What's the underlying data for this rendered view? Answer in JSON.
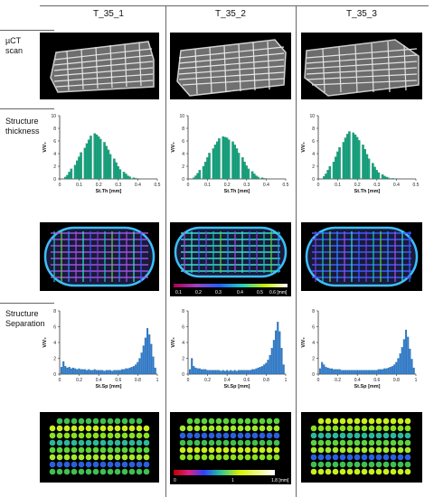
{
  "columns": [
    "T_35_1",
    "T_35_2",
    "T_35_3"
  ],
  "rows": {
    "uct": [
      "µCT",
      "scan"
    ],
    "thickness": [
      "Structure",
      "thickness"
    ],
    "separation": [
      "Structure",
      "Separation"
    ]
  },
  "colorbars": {
    "thickness_ticks": [
      "0.1",
      "0.2",
      "0.3",
      "0.4",
      "0.5",
      "0.6 [mm]"
    ],
    "separation_ticks": [
      "0",
      "1",
      "1.8 [mm]"
    ]
  },
  "chart_data": [
    {
      "type": "bar",
      "group": "thickness",
      "column": "T_35_1",
      "xlabel": "St.Th [mm]",
      "ylabel": "V/V₀",
      "xlim": [
        0,
        0.5
      ],
      "ylim": [
        0,
        10
      ],
      "xticks": [
        "0",
        "0.1",
        "0.2",
        "0.3",
        "0.4",
        "0.5"
      ],
      "yticks": [
        "0",
        "2",
        "4",
        "6",
        "8",
        "10"
      ],
      "bin_width": 0.0125,
      "x": [
        0.03,
        0.04,
        0.05,
        0.06,
        0.08,
        0.09,
        0.1,
        0.11,
        0.13,
        0.14,
        0.15,
        0.16,
        0.18,
        0.19,
        0.2,
        0.21,
        0.23,
        0.24,
        0.25,
        0.26,
        0.28,
        0.29,
        0.3,
        0.31,
        0.33,
        0.34,
        0.35,
        0.36,
        0.38,
        0.39,
        0.4
      ],
      "values": [
        0.3,
        0.6,
        1.1,
        1.6,
        2.2,
        2.9,
        3.5,
        4.2,
        4.9,
        5.6,
        6.2,
        6.8,
        7.2,
        7.0,
        6.7,
        6.3,
        5.8,
        5.2,
        4.6,
        3.9,
        3.2,
        2.6,
        2.0,
        1.5,
        1.1,
        0.8,
        0.5,
        0.35,
        0.2,
        0.1,
        0.05
      ]
    },
    {
      "type": "bar",
      "group": "thickness",
      "column": "T_35_2",
      "xlabel": "St.Th [mm]",
      "ylabel": "V/V₀",
      "xlim": [
        0,
        0.5
      ],
      "ylim": [
        0,
        10
      ],
      "xticks": [
        "0",
        "0.1",
        "0.2",
        "0.3",
        "0.4",
        "0.5"
      ],
      "yticks": [
        "0",
        "2",
        "4",
        "6",
        "8",
        "10"
      ],
      "bin_width": 0.0125,
      "x": [
        0.03,
        0.04,
        0.05,
        0.06,
        0.08,
        0.09,
        0.1,
        0.11,
        0.13,
        0.14,
        0.15,
        0.16,
        0.18,
        0.19,
        0.2,
        0.21,
        0.23,
        0.24,
        0.25,
        0.26,
        0.28,
        0.29,
        0.3,
        0.31,
        0.33,
        0.34,
        0.35,
        0.36,
        0.38,
        0.39,
        0.4
      ],
      "values": [
        0.2,
        0.5,
        0.9,
        1.4,
        2.0,
        2.7,
        3.4,
        4.1,
        4.8,
        5.4,
        5.9,
        6.4,
        6.7,
        6.6,
        6.5,
        6.2,
        5.9,
        5.4,
        4.8,
        4.1,
        3.4,
        2.7,
        2.1,
        1.6,
        1.2,
        0.8,
        0.5,
        0.3,
        0.2,
        0.1,
        0.05
      ]
    },
    {
      "type": "bar",
      "group": "thickness",
      "column": "T_35_3",
      "xlabel": "St.Th [mm]",
      "ylabel": "V/V₀",
      "xlim": [
        0,
        0.5
      ],
      "ylim": [
        0,
        10
      ],
      "xticks": [
        "0",
        "0.1",
        "0.2",
        "0.3",
        "0.4",
        "0.5"
      ],
      "yticks": [
        "0",
        "2",
        "4",
        "6",
        "8",
        "10"
      ],
      "bin_width": 0.0125,
      "x": [
        0.03,
        0.04,
        0.05,
        0.06,
        0.08,
        0.09,
        0.1,
        0.11,
        0.13,
        0.14,
        0.15,
        0.16,
        0.18,
        0.19,
        0.2,
        0.21,
        0.23,
        0.24,
        0.25,
        0.26,
        0.28,
        0.29,
        0.3,
        0.31,
        0.33,
        0.34,
        0.35,
        0.36,
        0.38,
        0.39,
        0.4
      ],
      "values": [
        0.4,
        0.8,
        1.4,
        2.0,
        2.7,
        3.5,
        4.3,
        5.0,
        5.8,
        6.5,
        7.1,
        7.5,
        7.3,
        7.0,
        6.6,
        6.1,
        5.4,
        4.7,
        3.9,
        3.2,
        2.5,
        1.9,
        1.4,
        1.0,
        0.7,
        0.45,
        0.3,
        0.2,
        0.1,
        0.05,
        0.03
      ]
    },
    {
      "type": "bar",
      "group": "separation",
      "column": "T_35_1",
      "xlabel": "St.Sp [mm]",
      "ylabel": "V/V₀",
      "xlim": [
        0,
        1
      ],
      "ylim": [
        0,
        8
      ],
      "xticks": [
        "0",
        "0.2",
        "0.4",
        "0.6",
        "0.8",
        "1"
      ],
      "yticks": [
        "0",
        "2",
        "4",
        "6",
        "8"
      ],
      "bin_width": 0.02,
      "x": [
        0.02,
        0.04,
        0.06,
        0.08,
        0.1,
        0.12,
        0.14,
        0.16,
        0.18,
        0.2,
        0.22,
        0.24,
        0.26,
        0.28,
        0.3,
        0.32,
        0.34,
        0.36,
        0.38,
        0.4,
        0.42,
        0.44,
        0.46,
        0.48,
        0.5,
        0.52,
        0.54,
        0.56,
        0.58,
        0.6,
        0.62,
        0.64,
        0.66,
        0.68,
        0.7,
        0.72,
        0.74,
        0.76,
        0.78,
        0.8,
        0.82,
        0.84,
        0.86,
        0.88,
        0.9,
        0.92,
        0.94,
        0.96,
        0.98
      ],
      "values": [
        0.9,
        1.6,
        1.0,
        0.8,
        0.9,
        0.7,
        0.8,
        0.7,
        0.6,
        0.7,
        0.6,
        0.6,
        0.6,
        0.5,
        0.6,
        0.5,
        0.5,
        0.6,
        0.5,
        0.5,
        0.5,
        0.5,
        0.4,
        0.5,
        0.5,
        0.5,
        0.4,
        0.5,
        0.5,
        0.5,
        0.5,
        0.6,
        0.6,
        0.7,
        0.7,
        0.8,
        0.9,
        1.0,
        1.2,
        1.5,
        2.0,
        2.7,
        3.6,
        4.6,
        5.8,
        5.0,
        3.8,
        2.2,
        0.8
      ]
    },
    {
      "type": "bar",
      "group": "separation",
      "column": "T_35_2",
      "xlabel": "St.Sp [mm]",
      "ylabel": "V/V₀",
      "xlim": [
        0,
        1
      ],
      "ylim": [
        0,
        8
      ],
      "xticks": [
        "0",
        "0.2",
        "0.4",
        "0.6",
        "0.8",
        "1"
      ],
      "yticks": [
        "0",
        "2",
        "4",
        "6",
        "8"
      ],
      "bin_width": 0.02,
      "x": [
        0.02,
        0.04,
        0.06,
        0.08,
        0.1,
        0.12,
        0.14,
        0.16,
        0.18,
        0.2,
        0.22,
        0.24,
        0.26,
        0.28,
        0.3,
        0.32,
        0.34,
        0.36,
        0.38,
        0.4,
        0.42,
        0.44,
        0.46,
        0.48,
        0.5,
        0.52,
        0.54,
        0.56,
        0.58,
        0.6,
        0.62,
        0.64,
        0.66,
        0.68,
        0.7,
        0.72,
        0.74,
        0.76,
        0.78,
        0.8,
        0.82,
        0.84,
        0.86,
        0.88,
        0.9,
        0.92,
        0.94,
        0.96,
        0.98
      ],
      "values": [
        0.6,
        2.0,
        1.0,
        0.8,
        0.7,
        0.7,
        0.6,
        0.6,
        0.6,
        0.5,
        0.5,
        0.5,
        0.5,
        0.5,
        0.5,
        0.5,
        0.4,
        0.5,
        0.4,
        0.5,
        0.4,
        0.5,
        0.4,
        0.5,
        0.4,
        0.5,
        0.5,
        0.5,
        0.5,
        0.5,
        0.5,
        0.5,
        0.6,
        0.6,
        0.7,
        0.8,
        0.9,
        1.0,
        1.2,
        1.4,
        1.8,
        2.4,
        3.3,
        4.3,
        5.5,
        6.6,
        5.4,
        3.3,
        1.2
      ]
    },
    {
      "type": "bar",
      "group": "separation",
      "column": "T_35_3",
      "xlabel": "St.Sp [mm]",
      "ylabel": "V/V₀",
      "xlim": [
        0,
        1
      ],
      "ylim": [
        0,
        8
      ],
      "xticks": [
        "0",
        "0.2",
        "0.4",
        "0.6",
        "0.8",
        "1"
      ],
      "yticks": [
        "0",
        "2",
        "4",
        "6",
        "8"
      ],
      "bin_width": 0.02,
      "x": [
        0.02,
        0.04,
        0.06,
        0.08,
        0.1,
        0.12,
        0.14,
        0.16,
        0.18,
        0.2,
        0.22,
        0.24,
        0.26,
        0.28,
        0.3,
        0.32,
        0.34,
        0.36,
        0.38,
        0.4,
        0.42,
        0.44,
        0.46,
        0.48,
        0.5,
        0.52,
        0.54,
        0.56,
        0.58,
        0.6,
        0.62,
        0.64,
        0.66,
        0.68,
        0.7,
        0.72,
        0.74,
        0.76,
        0.78,
        0.8,
        0.82,
        0.84,
        0.86,
        0.88,
        0.9,
        0.92,
        0.94,
        0.96,
        0.98
      ],
      "values": [
        0.7,
        1.5,
        1.2,
        0.9,
        0.8,
        0.7,
        0.7,
        0.6,
        0.6,
        0.6,
        0.6,
        0.5,
        0.5,
        0.5,
        0.5,
        0.5,
        0.5,
        0.5,
        0.5,
        0.5,
        0.5,
        0.5,
        0.5,
        0.5,
        0.5,
        0.5,
        0.5,
        0.5,
        0.5,
        0.5,
        0.6,
        0.6,
        0.6,
        0.7,
        0.7,
        0.8,
        0.9,
        1.0,
        1.2,
        1.5,
        2.0,
        2.6,
        3.4,
        4.4,
        5.6,
        4.7,
        3.2,
        1.9,
        0.8
      ]
    }
  ]
}
